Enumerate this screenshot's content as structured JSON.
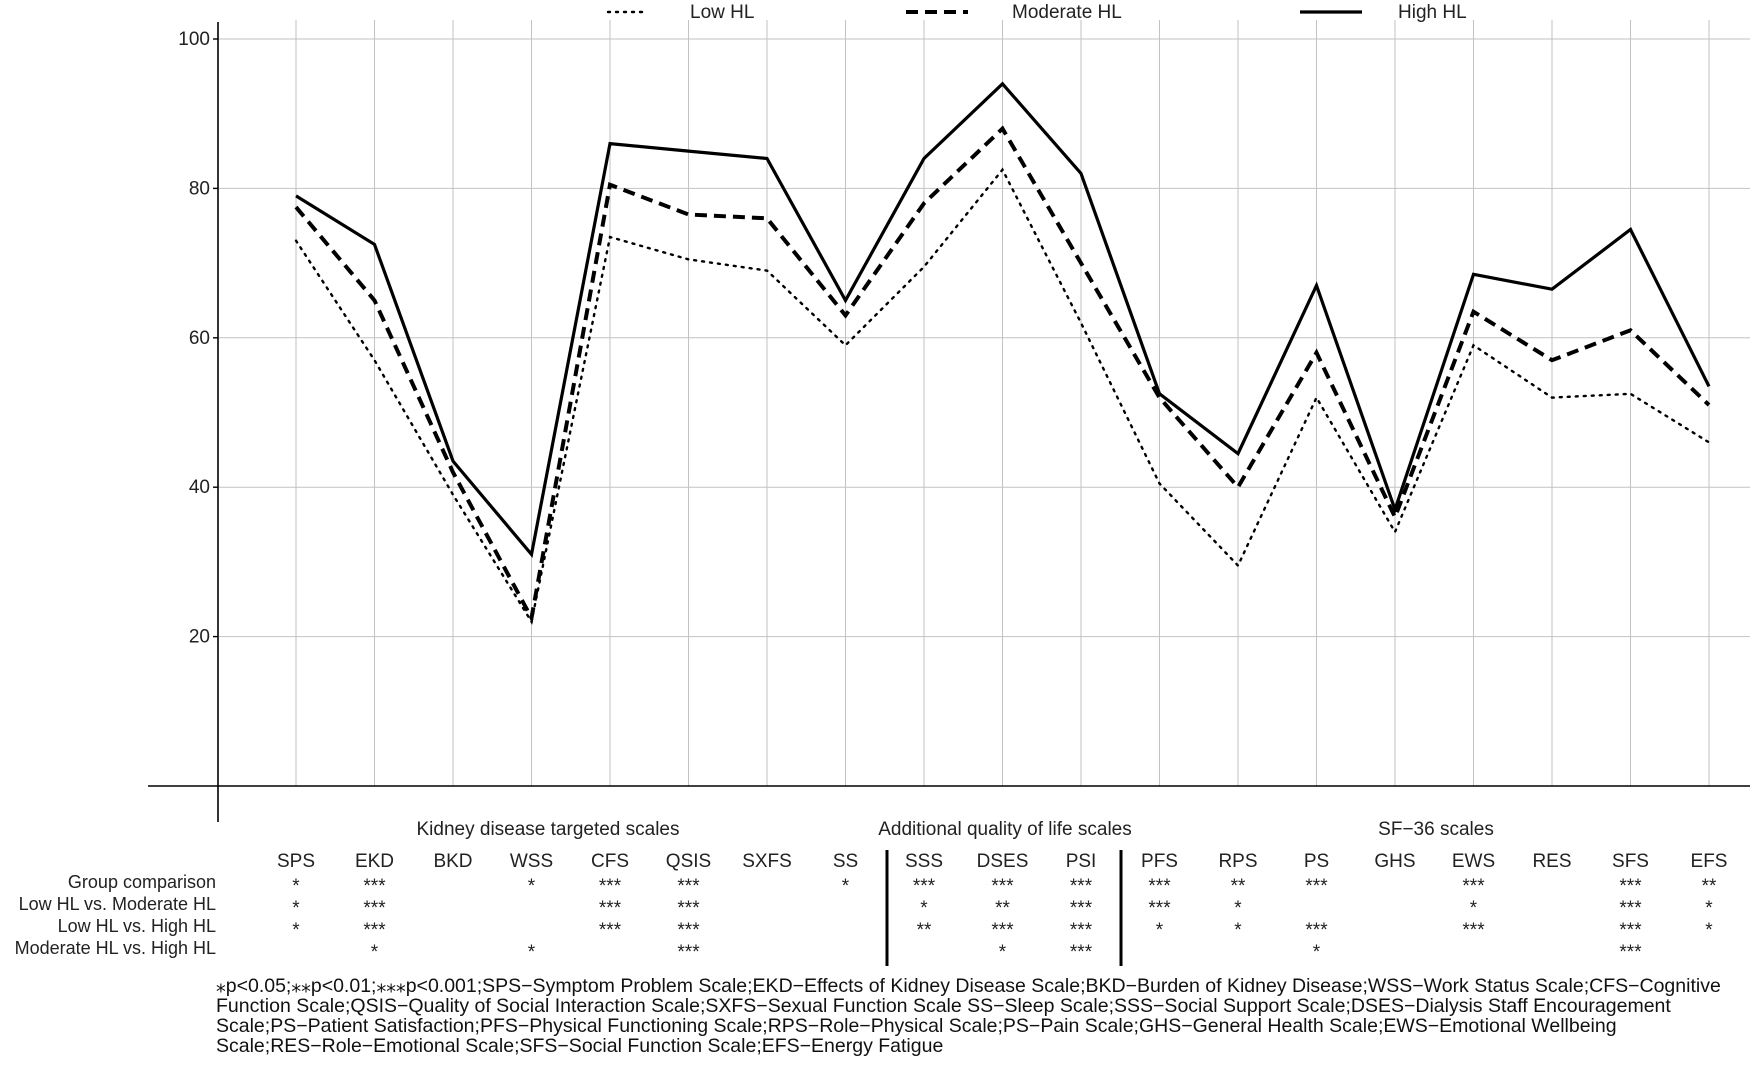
{
  "chart_data": {
    "type": "line",
    "categories": [
      "SPS",
      "EKD",
      "BKD",
      "WSS",
      "CFS",
      "QSIS",
      "SXFS",
      "SS",
      "SSS",
      "DSES",
      "PSI",
      "PFS",
      "RPS",
      "PS",
      "GHS",
      "EWS",
      "RES",
      "SFS",
      "EFS"
    ],
    "series": [
      {
        "name": "Low HL",
        "style": "dotted",
        "values": [
          73,
          57,
          39,
          22,
          73.5,
          70.5,
          69,
          59,
          69.5,
          82.5,
          62,
          40.5,
          29.5,
          52,
          34,
          59,
          52,
          52.5,
          46
        ]
      },
      {
        "name": "Moderate HL",
        "style": "dashed",
        "values": [
          77.5,
          65,
          42,
          22.5,
          80.5,
          76.5,
          76,
          63,
          78,
          88,
          70,
          52,
          40,
          58,
          36,
          63.5,
          57,
          61,
          51
        ]
      },
      {
        "name": "High HL",
        "style": "solid",
        "values": [
          79,
          72.5,
          43.5,
          31,
          86,
          85,
          84,
          65,
          84,
          94,
          82,
          52.5,
          44.5,
          67,
          37,
          68.5,
          66.5,
          74.5,
          53.5
        ]
      }
    ],
    "yticks": [
      "100",
      "80",
      "60",
      "40",
      "20"
    ],
    "ylim": [
      0,
      100
    ],
    "grid": true,
    "legend_position": "top",
    "groups": [
      {
        "label": "Kidney disease targeted scales"
      },
      {
        "label": "Additional quality of life scales"
      },
      {
        "label": "SF−36 scales"
      }
    ],
    "significance_rows": [
      {
        "label": "Group comparison",
        "marks": [
          "*",
          "***",
          "",
          "*",
          "***",
          "***",
          "",
          "*",
          "***",
          "***",
          "***",
          "***",
          "**",
          "***",
          "",
          "***",
          "",
          "***",
          "**"
        ]
      },
      {
        "label": "Low HL vs. Moderate HL",
        "marks": [
          "*",
          "***",
          "",
          "",
          "***",
          "***",
          "",
          "",
          "*",
          "**",
          "***",
          "***",
          "*",
          "",
          "",
          "*",
          "",
          "***",
          "*"
        ]
      },
      {
        "label": "Low HL vs. High HL",
        "marks": [
          "*",
          "***",
          "",
          "",
          "***",
          "***",
          "",
          "",
          "**",
          "***",
          "***",
          "*",
          "*",
          "***",
          "",
          "***",
          "",
          "***",
          "*"
        ]
      },
      {
        "label": "Moderate HL vs. High HL",
        "marks": [
          "",
          "*",
          "",
          "*",
          "",
          "***",
          "",
          "",
          "",
          "*",
          "***",
          "",
          "",
          "*",
          "",
          "",
          "",
          "***",
          ""
        ]
      }
    ]
  },
  "footnote": "⁎p<0.05;⁎⁎p<0.01;⁎⁎⁎p<0.001;SPS−Symptom Problem Scale;EKD−Effects of Kidney Disease Scale;BKD−Burden of Kidney Disease;WSS−Work Status Scale;CFS−Cognitive Function Scale;QSIS−Quality of Social Interaction Scale;SXFS−Sexual Function Scale SS−Sleep Scale;SSS−Social Support Scale;DSES−Dialysis Staff Encouragement Scale;PS−Patient Satisfaction;PFS−Physical Functioning Scale;RPS−Role−Physical Scale;PS−Pain Scale;GHS−General Health Scale;EWS−Emotional Wellbeing Scale;RES−Role−Emotional Scale;SFS−Social Function Scale;EFS−Energy Fatigue"
}
